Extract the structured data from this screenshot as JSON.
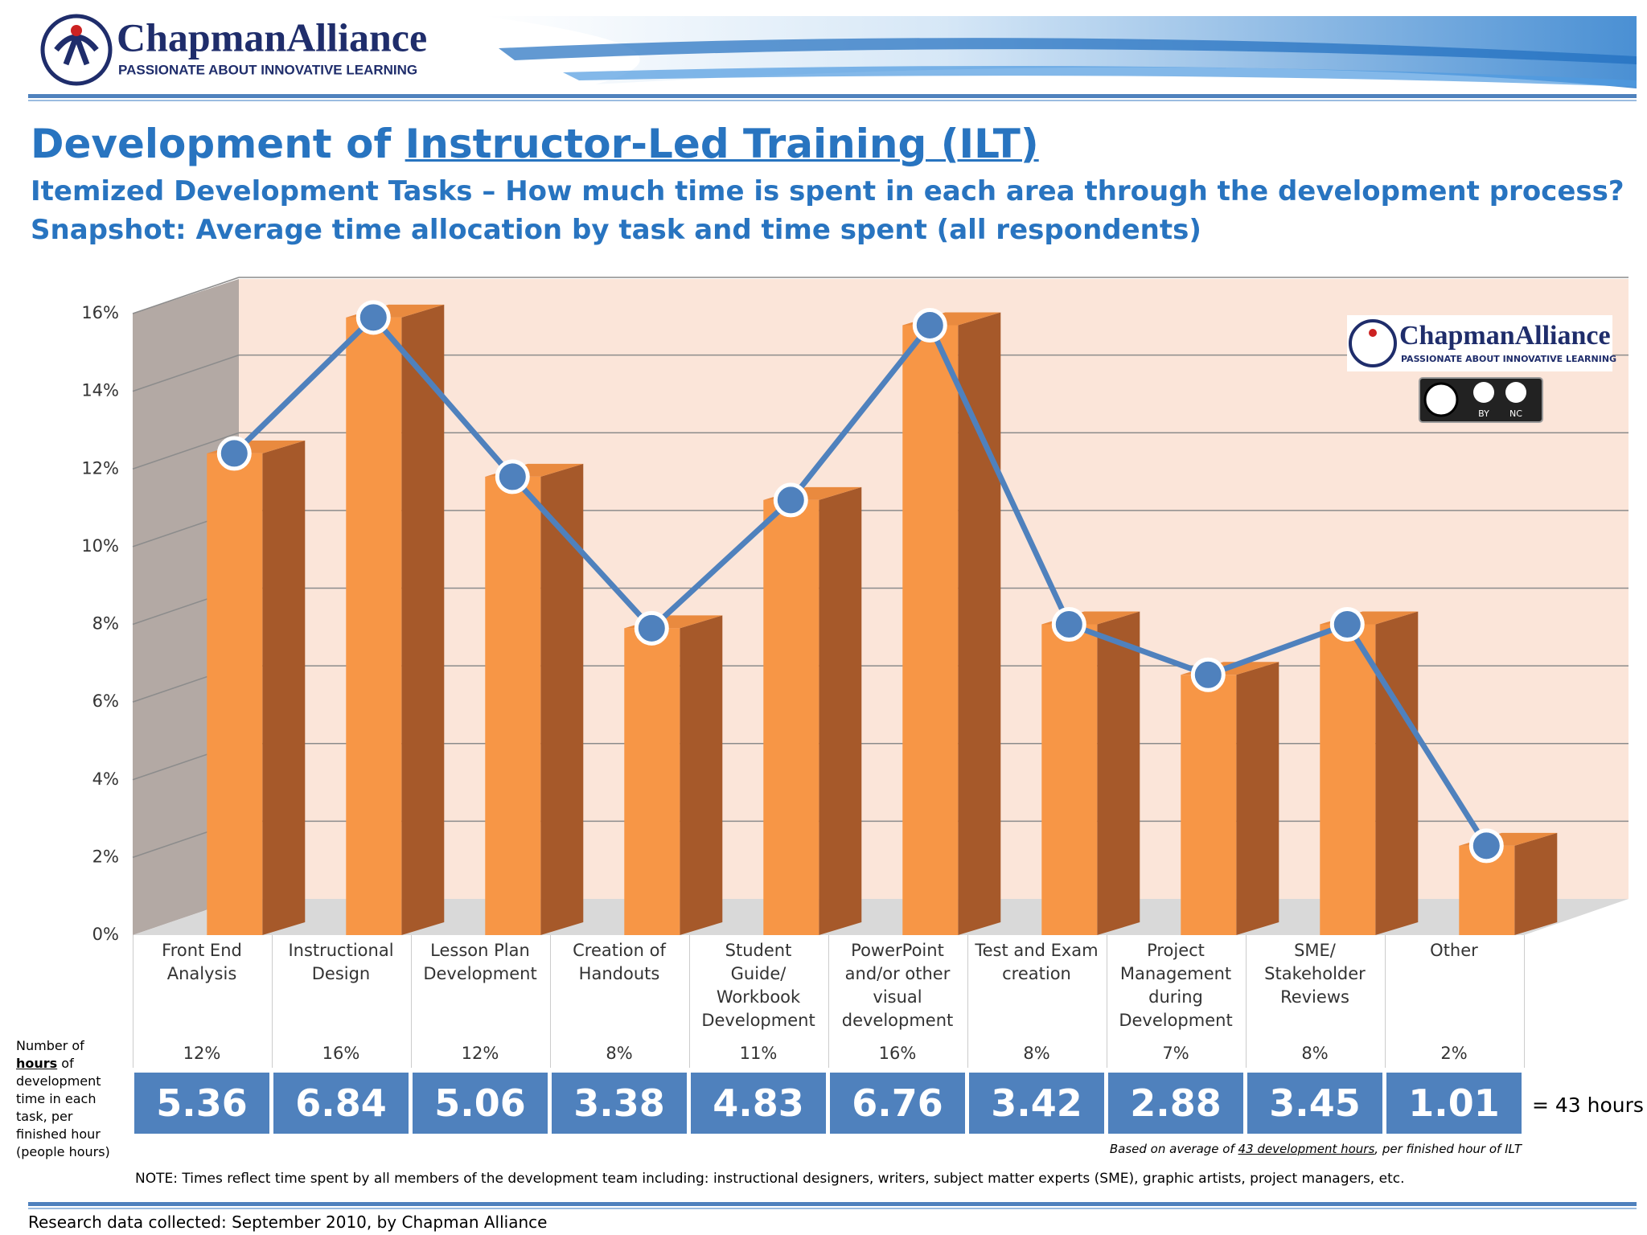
{
  "header": {
    "brand": "ChapmanAlliance",
    "tagline": "PASSIONATE ABOUT INNOVATIVE LEARNING"
  },
  "title": "Development of",
  "title_link": "Instructor-Led Training (ILT)",
  "subtitle": "Itemized Development Tasks – How much time is spent in each area through the development process?",
  "subtitle2": "Snapshot: Average time allocation by task and time spent (all respondents)",
  "badge": {
    "brand": "ChapmanAlliance",
    "tagline": "PASSIONATE ABOUT INNOVATIVE LEARNING",
    "by": "BY",
    "nc": "NC"
  },
  "chart_data": {
    "type": "bar",
    "categories": [
      "Front End\nAnalysis",
      "Instructional\nDesign",
      "Lesson Plan\nDevelopment",
      "Creation of\nHandouts",
      "Student\nGuide/\nWorkbook\nDevelopment",
      "PowerPoint\nand/or other\nvisual\ndevelopment",
      "Test and Exam\ncreation",
      "Project\nManagement\nduring\nDevelopment",
      "SME/\nStakeholder\nReviews",
      "Other"
    ],
    "values": [
      12.4,
      15.9,
      11.8,
      7.9,
      11.2,
      15.7,
      8.0,
      6.7,
      8.0,
      2.3
    ],
    "value_labels": [
      "12%",
      "16%",
      "12%",
      "8%",
      "11%",
      "16%",
      "8%",
      "7%",
      "8%",
      "2%"
    ],
    "color": "#f79646",
    "line_color": "#4f81bd",
    "ylim": [
      0,
      16
    ],
    "yticks": [
      {
        "value": 0,
        "label": "0%"
      },
      {
        "value": 2,
        "label": "2%"
      },
      {
        "value": 4,
        "label": "4%"
      },
      {
        "value": 6,
        "label": "6%"
      },
      {
        "value": 8,
        "label": "8%"
      },
      {
        "value": 10,
        "label": "10%"
      },
      {
        "value": 12,
        "label": "12%"
      },
      {
        "value": 14,
        "label": "14%"
      },
      {
        "value": 16,
        "label": "16%"
      }
    ],
    "grid": true,
    "hours": [
      "5.36",
      "6.84",
      "5.06",
      "3.38",
      "4.83",
      "6.76",
      "3.42",
      "2.88",
      "3.45",
      "1.01"
    ],
    "hours_total": "= 43 hours"
  },
  "row_note": [
    "Number of",
    "hours",
    "of development time in each task, per finished hour (people hours)"
  ],
  "basis": [
    "Based on average of",
    "43 development hours",
    ", per finished hour of ILT"
  ],
  "note": "NOTE: Times reflect time spent by all members of the development team including: instructional designers, writers, subject matter experts (SME), graphic artists, project managers, etc.",
  "footer": "Research data collected: September 2010, by Chapman Alliance"
}
